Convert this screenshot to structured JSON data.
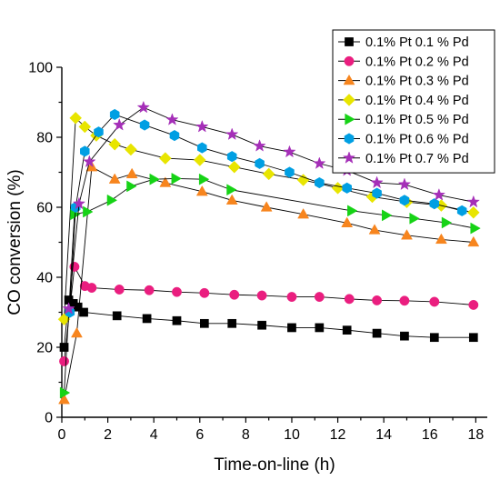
{
  "chart_data": {
    "type": "scatter",
    "xlabel": "Time-on-line (h)",
    "ylabel": "CO conversion (%)",
    "xlim": [
      0,
      18.5
    ],
    "ylim": [
      0,
      100
    ],
    "xticks": [
      0,
      2,
      4,
      6,
      8,
      10,
      12,
      14,
      16,
      18
    ],
    "yticks": [
      0,
      20,
      40,
      60,
      80,
      100
    ],
    "grid": false,
    "legend_position": "top-right",
    "series": [
      {
        "name": "0.1% Pt 0.1 % Pd",
        "marker": "square",
        "color": "#000000",
        "x": [
          0.1,
          0.3,
          0.5,
          0.7,
          0.95,
          2.4,
          3.7,
          5.0,
          6.2,
          7.4,
          8.7,
          10.0,
          11.2,
          12.4,
          13.7,
          14.9,
          16.2,
          17.9
        ],
        "y": [
          20,
          33.5,
          32.5,
          31.5,
          30,
          29,
          28.2,
          27.6,
          26.8,
          26.8,
          26.3,
          25.6,
          25.6,
          24.9,
          24,
          23.2,
          22.8,
          22.8
        ]
      },
      {
        "name": "0.1% Pt 0.2 % Pd",
        "marker": "circle",
        "color": "#ea1e7f",
        "x": [
          0.1,
          0.55,
          1.0,
          1.3,
          2.5,
          3.8,
          5.0,
          6.2,
          7.5,
          8.7,
          10.0,
          11.2,
          12.5,
          13.7,
          14.9,
          16.2,
          17.9
        ],
        "y": [
          16,
          43,
          37.5,
          37,
          36.5,
          36.3,
          35.8,
          35.5,
          35,
          34.8,
          34.4,
          34.4,
          33.8,
          33.4,
          33.3,
          33,
          32.1
        ]
      },
      {
        "name": "0.1% Pt 0.3 % Pd",
        "marker": "triangle-up",
        "color": "#f7851e",
        "x": [
          0.1,
          0.65,
          1.3,
          2.3,
          3.05,
          4.5,
          6.1,
          7.4,
          8.9,
          10.5,
          12.4,
          13.6,
          15.0,
          16.5,
          17.9
        ],
        "y": [
          5,
          24,
          71.5,
          68,
          69.5,
          67,
          64.5,
          62,
          60,
          58,
          55.5,
          53.5,
          52,
          50.8,
          50
        ]
      },
      {
        "name": "0.1% Pt 0.4 % Pd",
        "marker": "diamond",
        "color": "#e8e500",
        "x": [
          0.1,
          0.6,
          1.0,
          1.5,
          2.3,
          3.0,
          4.5,
          6.0,
          7.5,
          9.0,
          10.5,
          12.0,
          13.5,
          15.0,
          16.5,
          17.9
        ],
        "y": [
          28,
          85.5,
          83,
          80.5,
          78,
          76.5,
          74,
          73.5,
          71.5,
          69.5,
          67.8,
          65.5,
          63,
          61.5,
          60.5,
          58.5
        ]
      },
      {
        "name": "0.1% Pt 0.5 % Pd",
        "marker": "triangle-right",
        "color": "#16d316",
        "x": [
          0.1,
          0.55,
          1.1,
          2.15,
          3.0,
          4.0,
          4.95,
          6.15,
          7.35,
          12.6,
          14.1,
          15.3,
          16.7,
          17.95
        ],
        "y": [
          7,
          58,
          58.7,
          62,
          66,
          68,
          68.2,
          68,
          65,
          59,
          57.7,
          56.8,
          55.6,
          54
        ]
      },
      {
        "name": "0.1% Pt 0.6 % Pd",
        "marker": "hexagon",
        "color": "#009fe3",
        "x": [
          0.35,
          0.6,
          1.0,
          1.6,
          2.3,
          3.6,
          4.9,
          6.1,
          7.4,
          8.6,
          9.9,
          11.2,
          12.4,
          13.7,
          14.9,
          16.2,
          17.4
        ],
        "y": [
          30,
          60,
          76,
          81.5,
          86.5,
          83.5,
          80.5,
          77,
          74.5,
          72.5,
          70,
          67,
          65.5,
          64,
          62,
          61,
          59
        ]
      },
      {
        "name": "0.1% Pt 0.7 % Pd",
        "marker": "star",
        "color": "#a52fb8",
        "x": [
          0.3,
          0.75,
          1.2,
          2.5,
          3.55,
          4.8,
          6.1,
          7.4,
          8.6,
          9.9,
          11.2,
          12.4,
          13.7,
          14.9,
          16.4,
          17.9
        ],
        "y": [
          31,
          61,
          73,
          83.5,
          88.5,
          85,
          83,
          80.8,
          77.5,
          75.8,
          72.5,
          70.5,
          67,
          66.5,
          63.5,
          61.5
        ]
      }
    ]
  }
}
